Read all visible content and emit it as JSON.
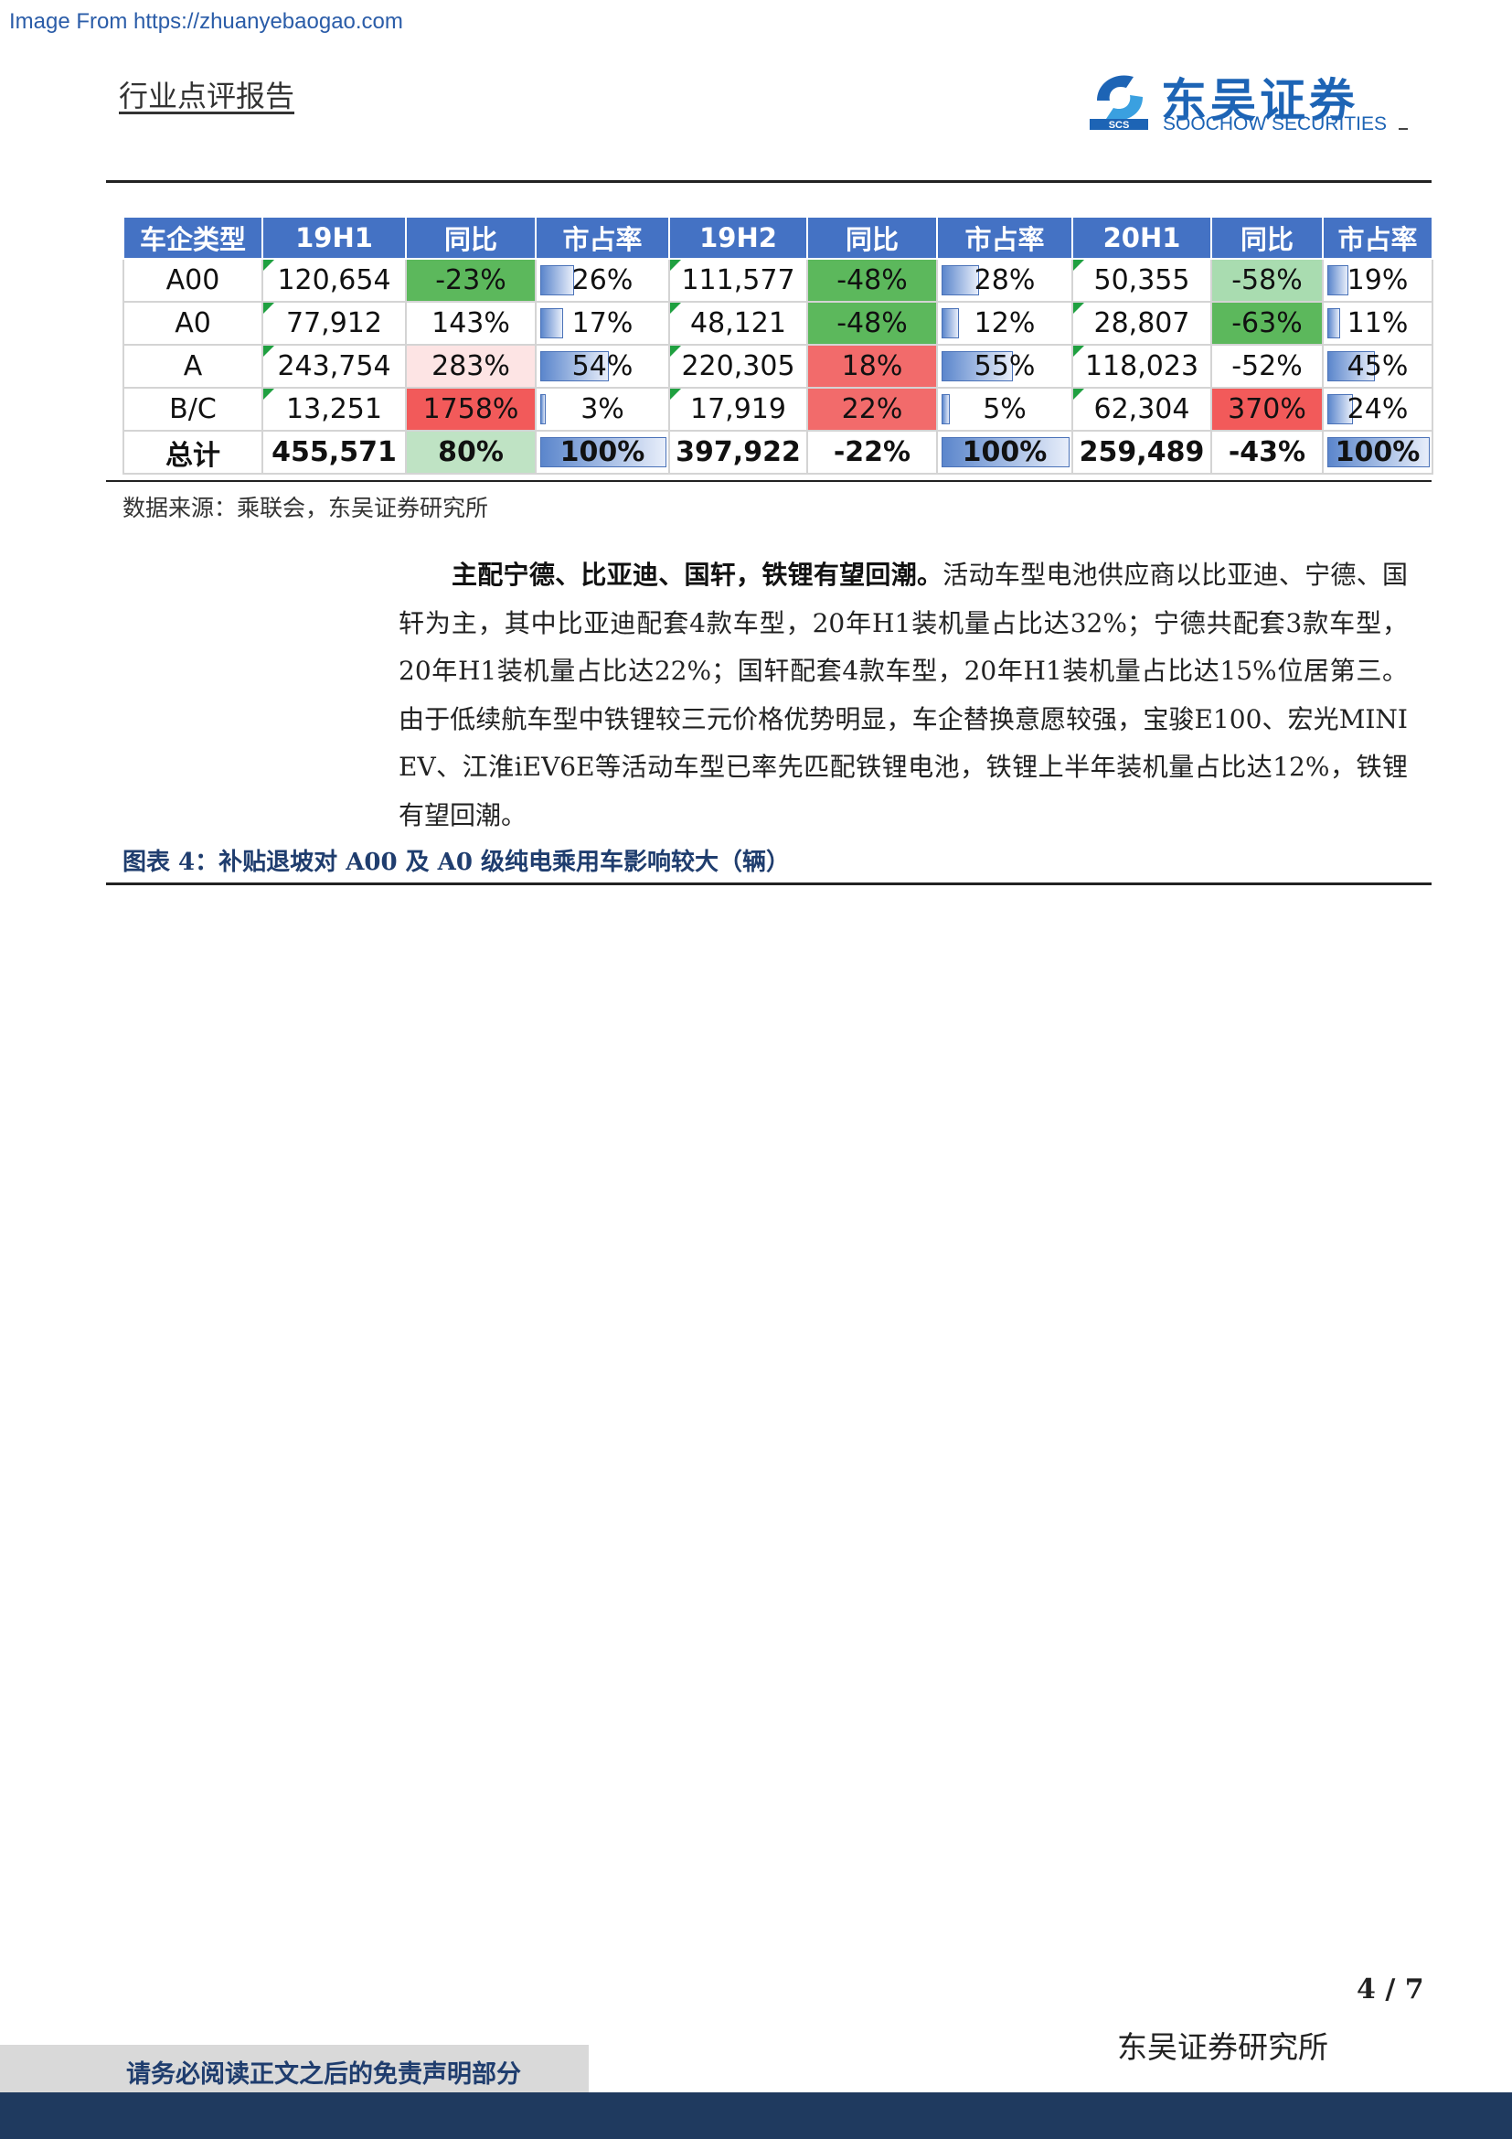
{
  "watermark": "Image From https://zhuanyebaogao.com",
  "header": {
    "report_type": "行业点评报告",
    "logo_cn": "东吴证券",
    "logo_en": "SOOCHOW SECURITIES",
    "logo_mark_text": "SCS"
  },
  "table": {
    "headers": [
      "车企类型",
      "19H1",
      "同比",
      "市占率",
      "19H2",
      "同比",
      "市占率",
      "20H1",
      "同比",
      "市占率"
    ],
    "rows": [
      {
        "type": "A00",
        "v19h1": "120,654",
        "yoy1": "-23%",
        "share1": "26%",
        "v19h2": "111,577",
        "yoy2": "-48%",
        "share2": "28%",
        "v20h1": "50,355",
        "yoy3": "-58%",
        "share3": "19%"
      },
      {
        "type": "A0",
        "v19h1": "77,912",
        "yoy1": "143%",
        "share1": "17%",
        "v19h2": "48,121",
        "yoy2": "-48%",
        "share2": "12%",
        "v20h1": "28,807",
        "yoy3": "-63%",
        "share3": "11%"
      },
      {
        "type": "A",
        "v19h1": "243,754",
        "yoy1": "283%",
        "share1": "54%",
        "v19h2": "220,305",
        "yoy2": "18%",
        "share2": "55%",
        "v20h1": "118,023",
        "yoy3": "-52%",
        "share3": "45%"
      },
      {
        "type": "B/C",
        "v19h1": "13,251",
        "yoy1": "1758%",
        "share1": "3%",
        "v19h2": "17,919",
        "yoy2": "22%",
        "share2": "5%",
        "v20h1": "62,304",
        "yoy3": "370%",
        "share3": "24%"
      },
      {
        "type": "总计",
        "v19h1": "455,571",
        "yoy1": "80%",
        "share1": "100%",
        "v19h2": "397,922",
        "yoy2": "-22%",
        "share2": "100%",
        "v20h1": "259,489",
        "yoy3": "-43%",
        "share3": "100%"
      }
    ],
    "share_levels": [
      [
        0.26,
        0.28,
        0.19
      ],
      [
        0.17,
        0.12,
        0.11
      ],
      [
        0.54,
        0.55,
        0.45
      ],
      [
        0.03,
        0.05,
        0.24
      ],
      [
        1.0,
        1.0,
        1.0
      ]
    ],
    "yoy_colors": [
      [
        "#5cb85c",
        "#5cb85c",
        "#a9dcb0"
      ],
      [
        "#ffffff",
        "#5cb85c",
        "#5cb85c"
      ],
      [
        "#fde4e4",
        "#f26b6b",
        "#ffffff"
      ],
      [
        "#f25a5a",
        "#f26b6b",
        "#f25a5a"
      ],
      [
        "#bfe3c4",
        "#ffffff",
        "#ffffff"
      ]
    ]
  },
  "source": "数据来源：乘联会，东吴证券研究所",
  "paragraph": {
    "bold": "主配宁德、比亚迪、国轩，铁锂有望回潮。",
    "text": "活动车型电池供应商以比亚迪、宁德、国轩为主，其中比亚迪配套4款车型，20年H1装机量占比达32%；宁德共配套3款车型，20年H1装机量占比达22%；国轩配套4款车型，20年H1装机量占比达15%位居第三。由于低续航车型中铁锂较三元价格优势明显，车企替换意愿较强，宝骏E100、宏光MINI EV、江淮iEV6E等活动车型已率先匹配铁锂电池，铁锂上半年装机量占比达12%，铁锂有望回潮。"
  },
  "caption": "图表 4：补贴退坡对 A00 及 A0 级纯电乘用车影响较大（辆）",
  "page_number": "4 / 7",
  "footer": {
    "institute": "东吴证券研究所",
    "disclaimer": "请务必阅读正文之后的免责声明部分"
  },
  "colors": {
    "header_bg": "#4472c4",
    "brand": "#1d64b5",
    "footer_band": "#1f3a5f"
  }
}
